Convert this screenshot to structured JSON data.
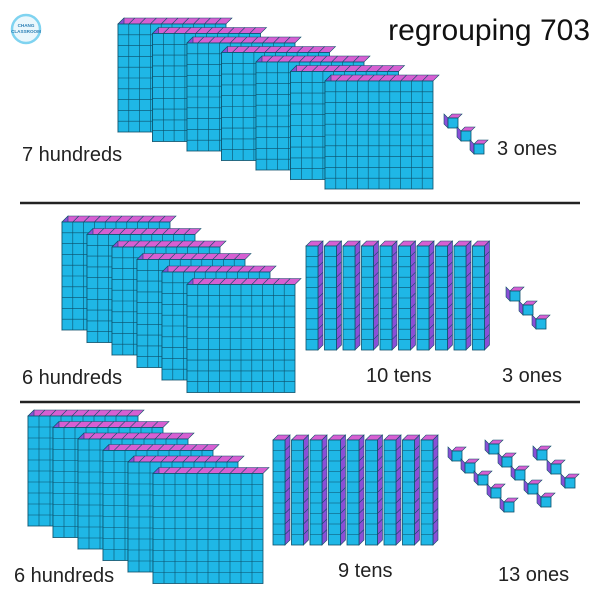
{
  "title": "regrouping 703",
  "logo": {
    "text_line1": "CHANG",
    "text_line2": "CLASSROOM",
    "colors": {
      "ring": "#7fd3f0",
      "fill": "#eaf7fc",
      "text": "#2a7fb5"
    }
  },
  "colors": {
    "block_face": "#1fb7e6",
    "block_top": "#d65fd2",
    "block_side": "#8a4fd6",
    "grid_line": "#0c4f69",
    "divider": "#222222"
  },
  "sections": [
    {
      "id": "row-1",
      "hundreds": {
        "count": 7,
        "label": "7 hundreds"
      },
      "tens": {
        "count": 0,
        "label": ""
      },
      "ones": {
        "count": 3,
        "label": "3 ones"
      }
    },
    {
      "id": "row-2",
      "hundreds": {
        "count": 6,
        "label": "6 hundreds"
      },
      "tens": {
        "count": 10,
        "label": "10 tens"
      },
      "ones": {
        "count": 3,
        "label": "3 ones"
      }
    },
    {
      "id": "row-3",
      "hundreds": {
        "count": 6,
        "label": "6 hundreds"
      },
      "tens": {
        "count": 9,
        "label": "9 tens"
      },
      "ones": {
        "count": 13,
        "label": "13 ones"
      }
    }
  ]
}
